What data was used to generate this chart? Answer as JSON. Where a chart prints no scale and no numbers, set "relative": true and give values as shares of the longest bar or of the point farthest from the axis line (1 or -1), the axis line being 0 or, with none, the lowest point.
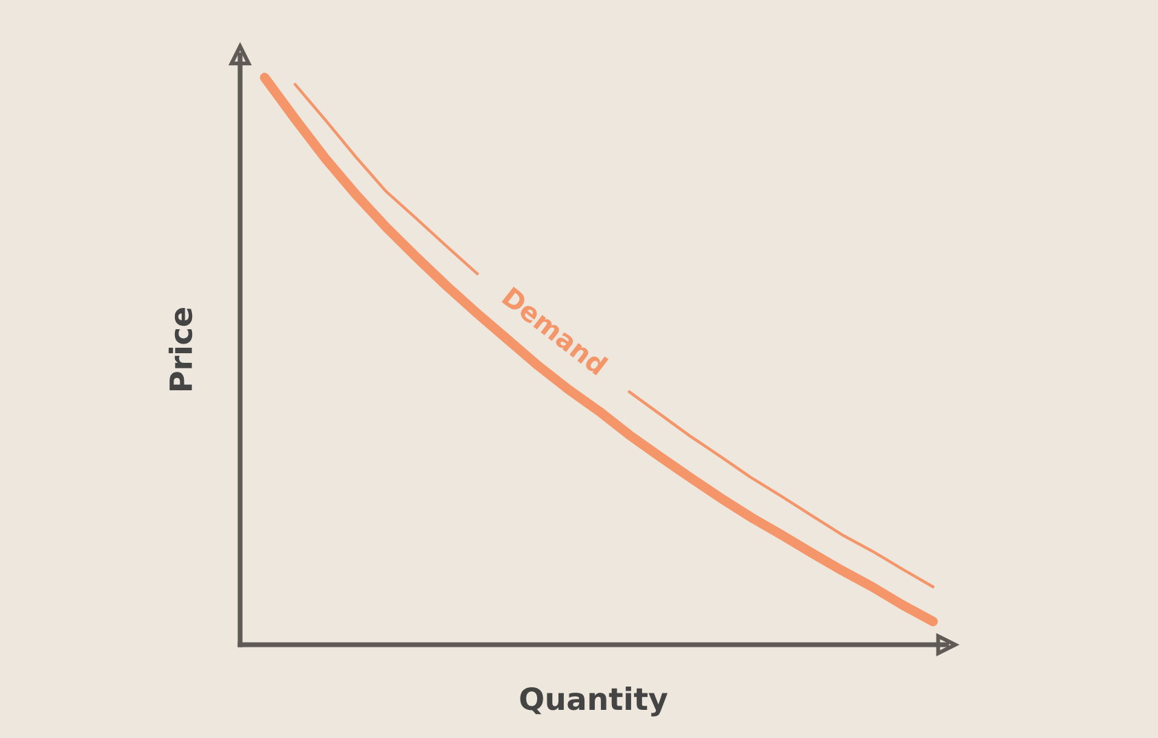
{
  "chart_data": {
    "type": "line",
    "relative": true,
    "xlabel": "Quantity",
    "ylabel": "Price",
    "categories": [
      null,
      null,
      null,
      null,
      null,
      null,
      null,
      null,
      null,
      null,
      null,
      null,
      null,
      null,
      null,
      null,
      null,
      null,
      null,
      null,
      null,
      null,
      null
    ],
    "legend": false,
    "marker": "none",
    "series": [
      {
        "color": "#f4956a",
        "values": [
          1,
          0.927,
          0.857,
          0.794,
          0.736,
          0.683,
          0.632,
          0.584,
          0.538,
          0.492,
          0.45,
          0.412,
          0.37,
          0.332,
          0.295,
          0.259,
          0.225,
          0.194,
          0.162,
          0.131,
          0.102,
          0.07,
          0.041
        ]
      },
      {
        "name": "Demand",
        "color": "#f4956a",
        "values": [
          null,
          0.988,
          0.925,
          0.86,
          0.799,
          0.751,
          0.702,
          0.654,
          null,
          null,
          null,
          null,
          0.446,
          0.407,
          0.368,
          0.332,
          0.295,
          0.262,
          0.228,
          0.194,
          0.165,
          0.133,
          0.102
        ]
      }
    ]
  }
}
